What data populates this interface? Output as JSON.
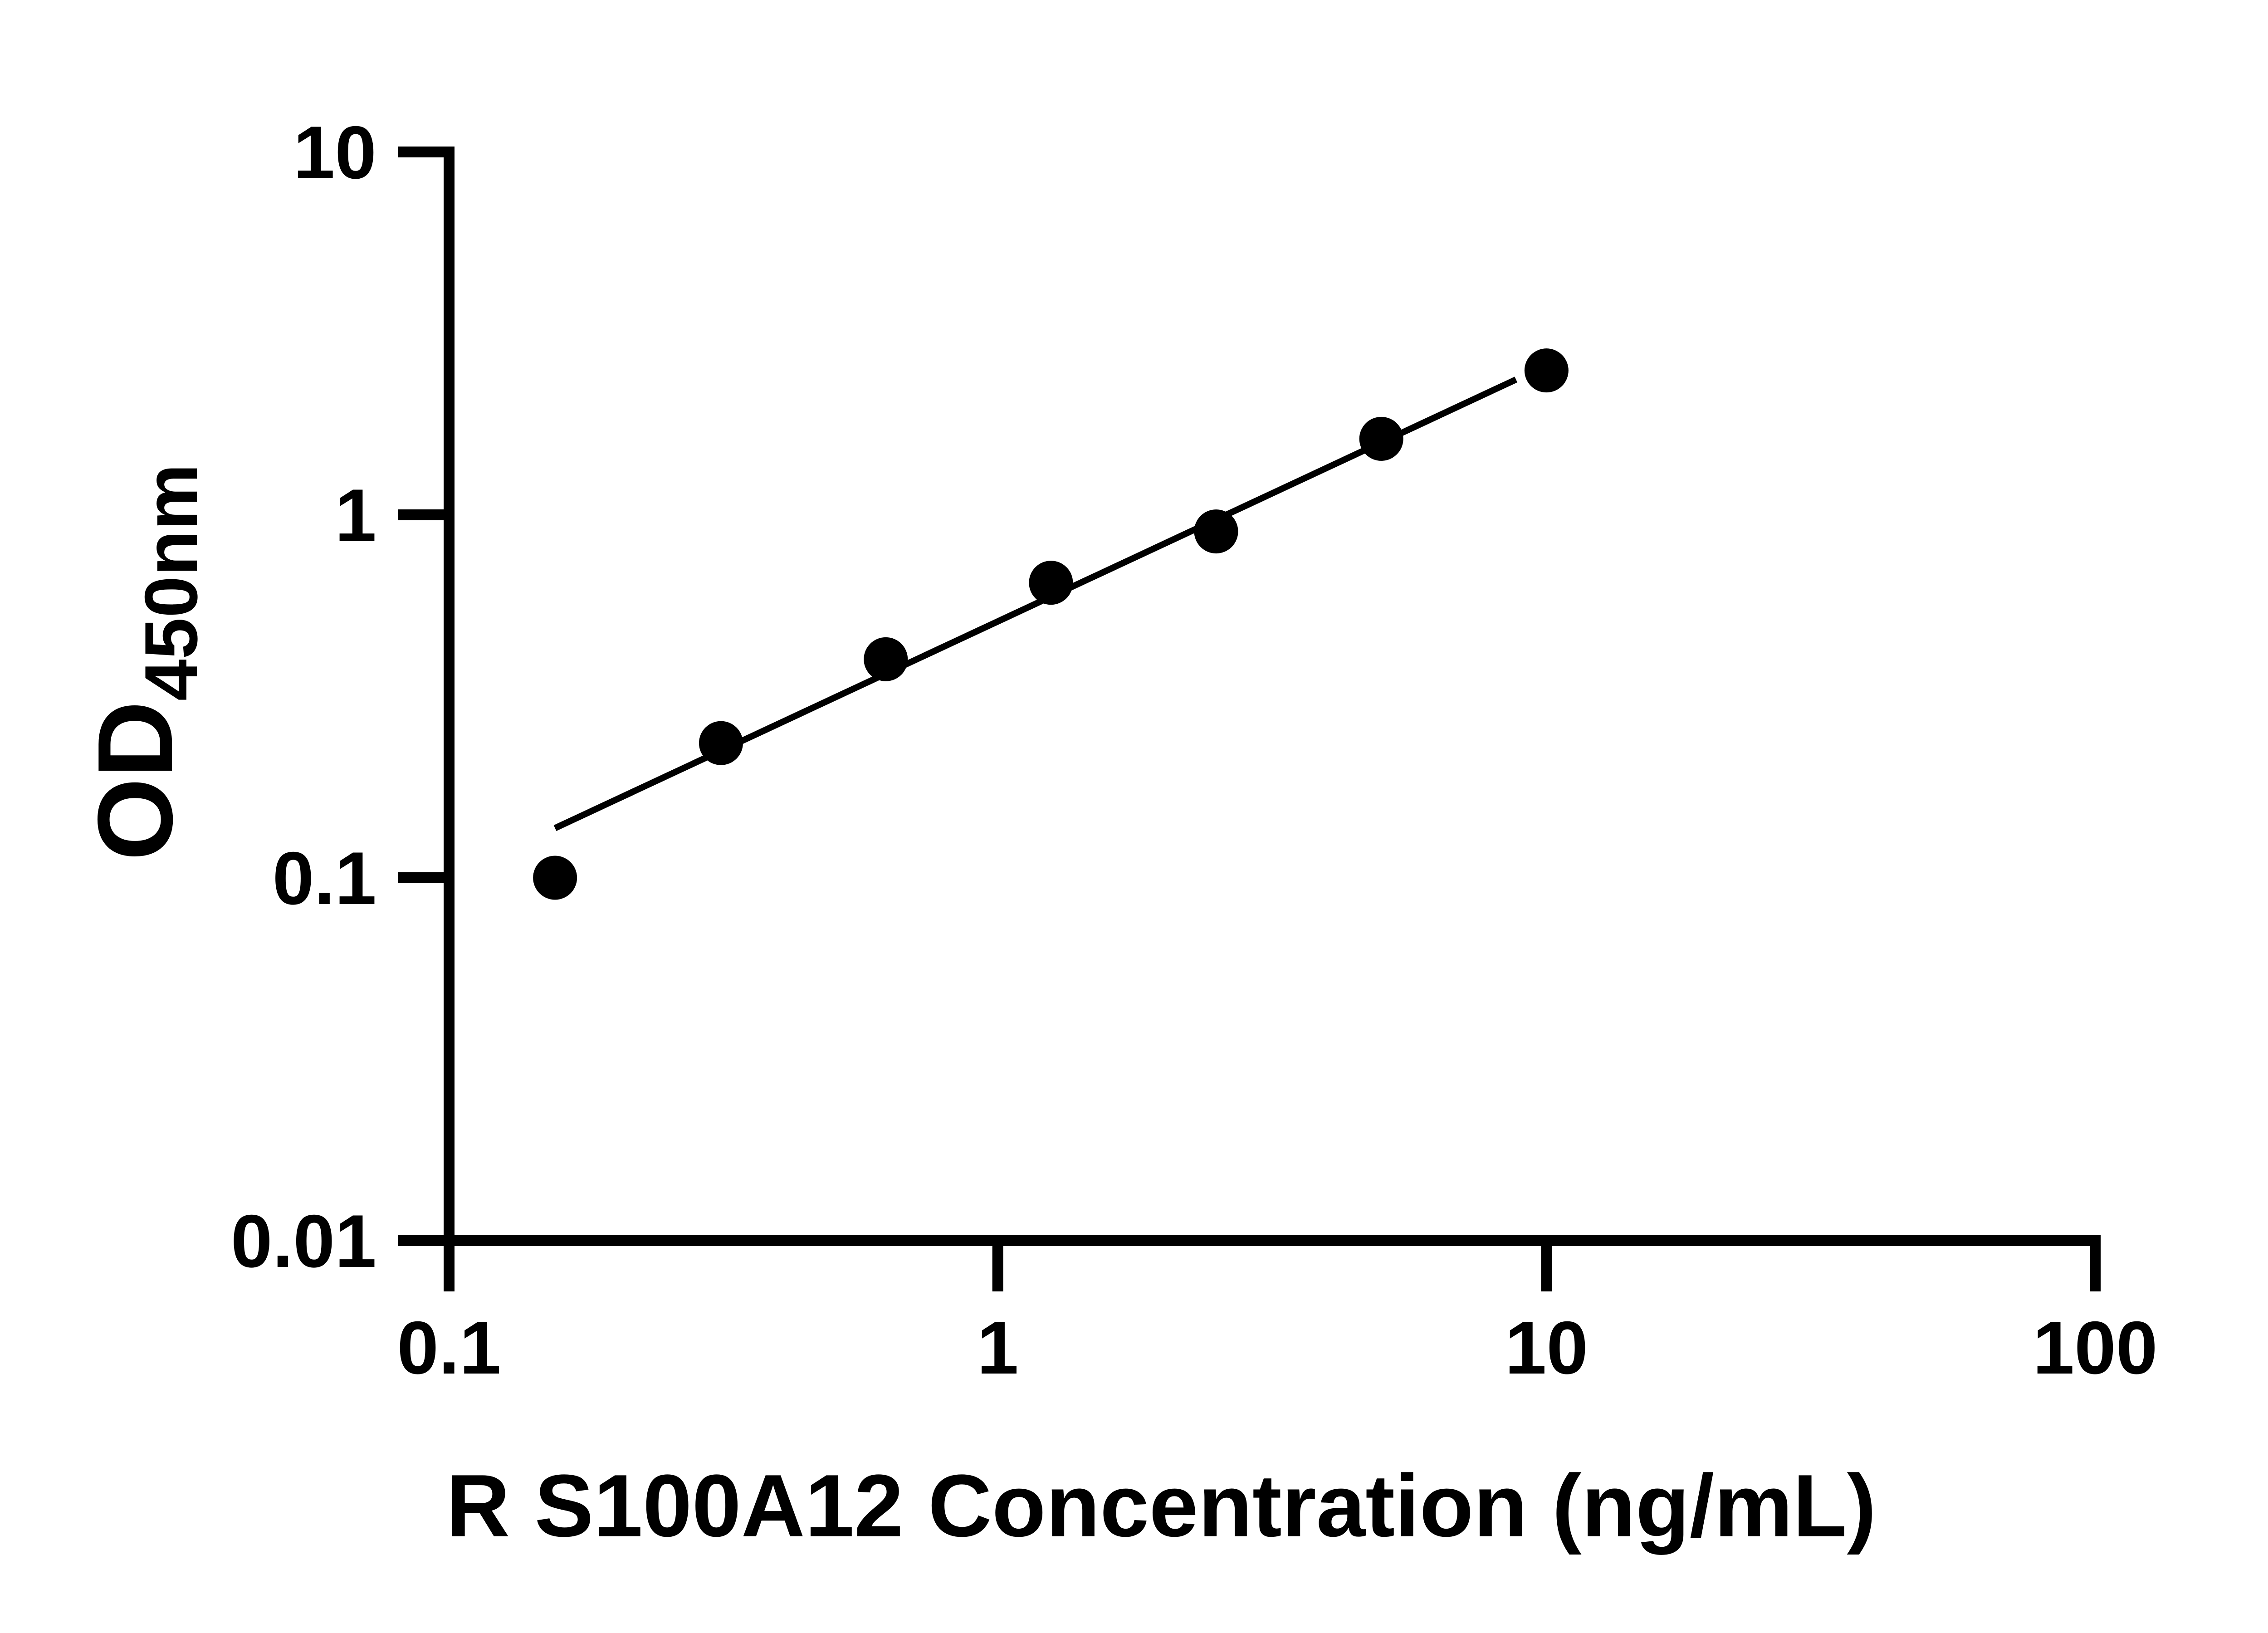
{
  "figure": {
    "background_color": "#ffffff",
    "ink_color": "#000000"
  },
  "chart_data": {
    "type": "scatter",
    "title": "",
    "xlabel": "R S100A12 Concentration (ng/mL)",
    "ylabel": "OD",
    "ylabel_subscript": "450nm",
    "x_scale": "log10",
    "y_scale": "log10",
    "xlim": [
      0.1,
      100
    ],
    "ylim": [
      0.01,
      10
    ],
    "grid": false,
    "legend_position": "none",
    "x_ticks": [
      {
        "value": 0.1,
        "label": "0.1"
      },
      {
        "value": 1,
        "label": "1"
      },
      {
        "value": 10,
        "label": "10"
      },
      {
        "value": 100,
        "label": "100"
      }
    ],
    "y_ticks": [
      {
        "value": 10,
        "label": "10"
      },
      {
        "value": 1,
        "label": "1"
      },
      {
        "value": 0.1,
        "label": "0.1"
      },
      {
        "value": 0.01,
        "label": "0.01"
      }
    ],
    "series": [
      {
        "name": "fit-line",
        "type": "line",
        "color": "#000000",
        "points": [
          {
            "x": 0.156,
            "y": 0.137
          },
          {
            "x": 8.8,
            "y": 2.36
          }
        ]
      },
      {
        "name": "standard-curve-points",
        "type": "scatter",
        "marker": "filled-circle",
        "color": "#000000",
        "points": [
          {
            "x": 0.156,
            "y": 0.1
          },
          {
            "x": 0.313,
            "y": 0.235
          },
          {
            "x": 0.625,
            "y": 0.4
          },
          {
            "x": 1.25,
            "y": 0.65
          },
          {
            "x": 2.5,
            "y": 0.9
          },
          {
            "x": 5,
            "y": 1.62
          },
          {
            "x": 10,
            "y": 2.5
          }
        ]
      }
    ]
  }
}
